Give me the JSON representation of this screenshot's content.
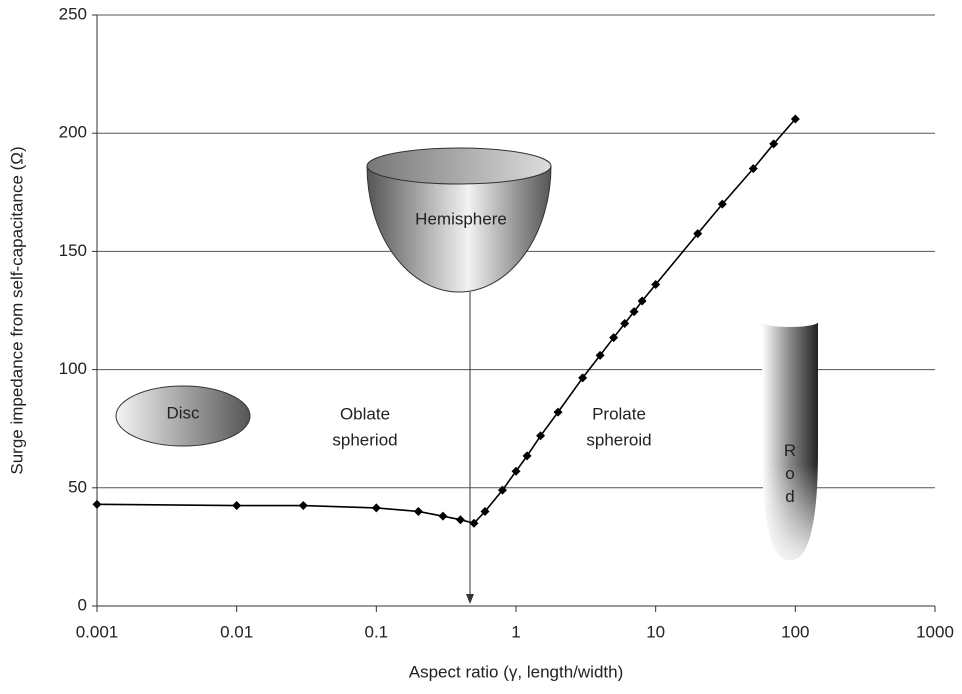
{
  "chart_data": {
    "type": "line",
    "xlabel": "Aspect ratio (γ, length/width)",
    "ylabel": "Surge impedance from self-capacitance (Ω)",
    "x": [
      0.001,
      0.01,
      0.03,
      0.1,
      0.2,
      0.3,
      0.4,
      0.5,
      0.6,
      0.8,
      1,
      1.2,
      1.5,
      2,
      3,
      4,
      5,
      6,
      7,
      8,
      10,
      20,
      30,
      50,
      70,
      100
    ],
    "series": [
      {
        "color": "#000000",
        "values": [
          43,
          42.5,
          42.5,
          41.5,
          40,
          38,
          36.5,
          35,
          40,
          49,
          57,
          63.5,
          72,
          82,
          96.5,
          106,
          113.5,
          119.5,
          124.5,
          129,
          136,
          157.5,
          170,
          185,
          195.5,
          206
        ]
      }
    ],
    "xlim": [
      0.001,
      1000
    ],
    "xticks": [
      0.001,
      0.01,
      0.1,
      1,
      10,
      100,
      1000
    ],
    "xscale": "log",
    "ylim": [
      0,
      250
    ],
    "yticks": [
      0,
      50,
      100,
      150,
      200,
      250
    ],
    "grid": true,
    "annotations": [
      "Disc",
      "Oblate",
      "spheriod",
      "Hemisphere",
      "Prolate",
      "spheroid",
      "Rod"
    ]
  }
}
